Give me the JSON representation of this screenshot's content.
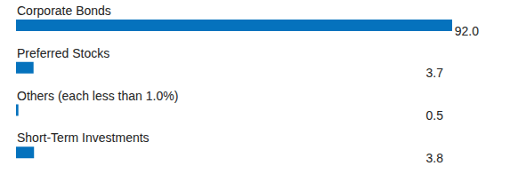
{
  "chart_data": {
    "type": "bar",
    "orientation": "horizontal",
    "categories": [
      "Corporate Bonds",
      "Preferred Stocks",
      "Others (each less than 1.0%)",
      "Short-Term Investments"
    ],
    "values": [
      92.0,
      3.7,
      0.5,
      3.8
    ],
    "value_labels": [
      "92.0",
      "3.7",
      "0.5",
      "3.8"
    ],
    "color": "#0572bd",
    "data_labels": true,
    "tick_labels": false
  }
}
